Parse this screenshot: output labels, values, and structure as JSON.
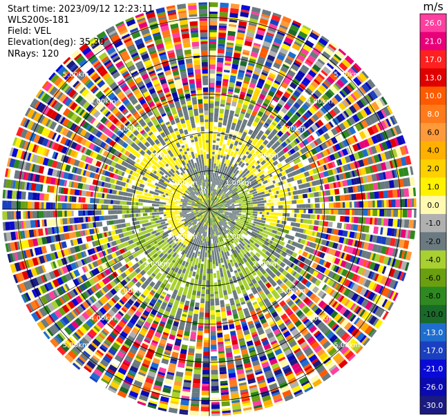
{
  "info": {
    "start_time": "Start time: 2023/09/12 12:23:11",
    "instrument": "WLS200s-181",
    "field": "Field: VEL",
    "elevation": "Elevation(deg): 35.30",
    "nrays": "NRays: 120"
  },
  "colorbar": {
    "unit": "m/s",
    "ticks": [
      "26.0",
      "21.0",
      "17.0",
      "13.0",
      "10.0",
      "8.0",
      "6.0",
      "4.0",
      "2.0",
      "1.0",
      "0.0",
      "-1.0",
      "-2.0",
      "-4.0",
      "-6.0",
      "-8.0",
      "-10.0",
      "-13.0",
      "-17.0",
      "-21.0",
      "-26.0",
      "-30.0"
    ],
    "colors": [
      "#ff3fa0",
      "#e8007a",
      "#ff2020",
      "#e00000",
      "#ff5a00",
      "#ff7a1a",
      "#ff9a3a",
      "#ffb000",
      "#ffd000",
      "#fff200",
      "#fffab0",
      "#b0b0b0",
      "#6a7a80",
      "#a8d030",
      "#6aa010",
      "#2e8a20",
      "#1a6a2a",
      "#1e6ed0",
      "#1a40c0",
      "#0a0ad8",
      "#0a0ab0",
      "#1a1a80"
    ]
  },
  "range_labels": [
    "1.00km",
    "2.00km",
    "3.00km",
    "4.00km",
    "5.00km"
  ],
  "chart_data": {
    "type": "ppi",
    "field": "VEL",
    "unit": "m/s",
    "nrays": 120,
    "elevation_deg": 35.3,
    "range_rings_km": [
      1.0,
      2.0,
      3.0,
      4.0,
      5.0
    ],
    "max_range_km": 5.4,
    "colorbar_bounds": [
      -30.0,
      -26.0,
      -21.0,
      -17.0,
      -13.0,
      -10.0,
      -8.0,
      -6.0,
      -4.0,
      -2.0,
      -1.0,
      0.0,
      1.0,
      2.0,
      4.0,
      6.0,
      8.0,
      10.0,
      13.0,
      17.0,
      21.0,
      26.0
    ],
    "regions": [
      {
        "range_km": [
          0.0,
          0.5
        ],
        "description": "mixed green / gray / yellow near-zero velocity"
      },
      {
        "range_km": [
          0.5,
          1.2
        ],
        "description": "gray ring with yellow sector west, light green east/south"
      },
      {
        "range_km": [
          1.2,
          2.5
        ],
        "description": "yellow positive band north, light green negative band south"
      },
      {
        "range_km": [
          2.5,
          5.4
        ],
        "description": "noisy multicolor returns at long range"
      }
    ]
  }
}
